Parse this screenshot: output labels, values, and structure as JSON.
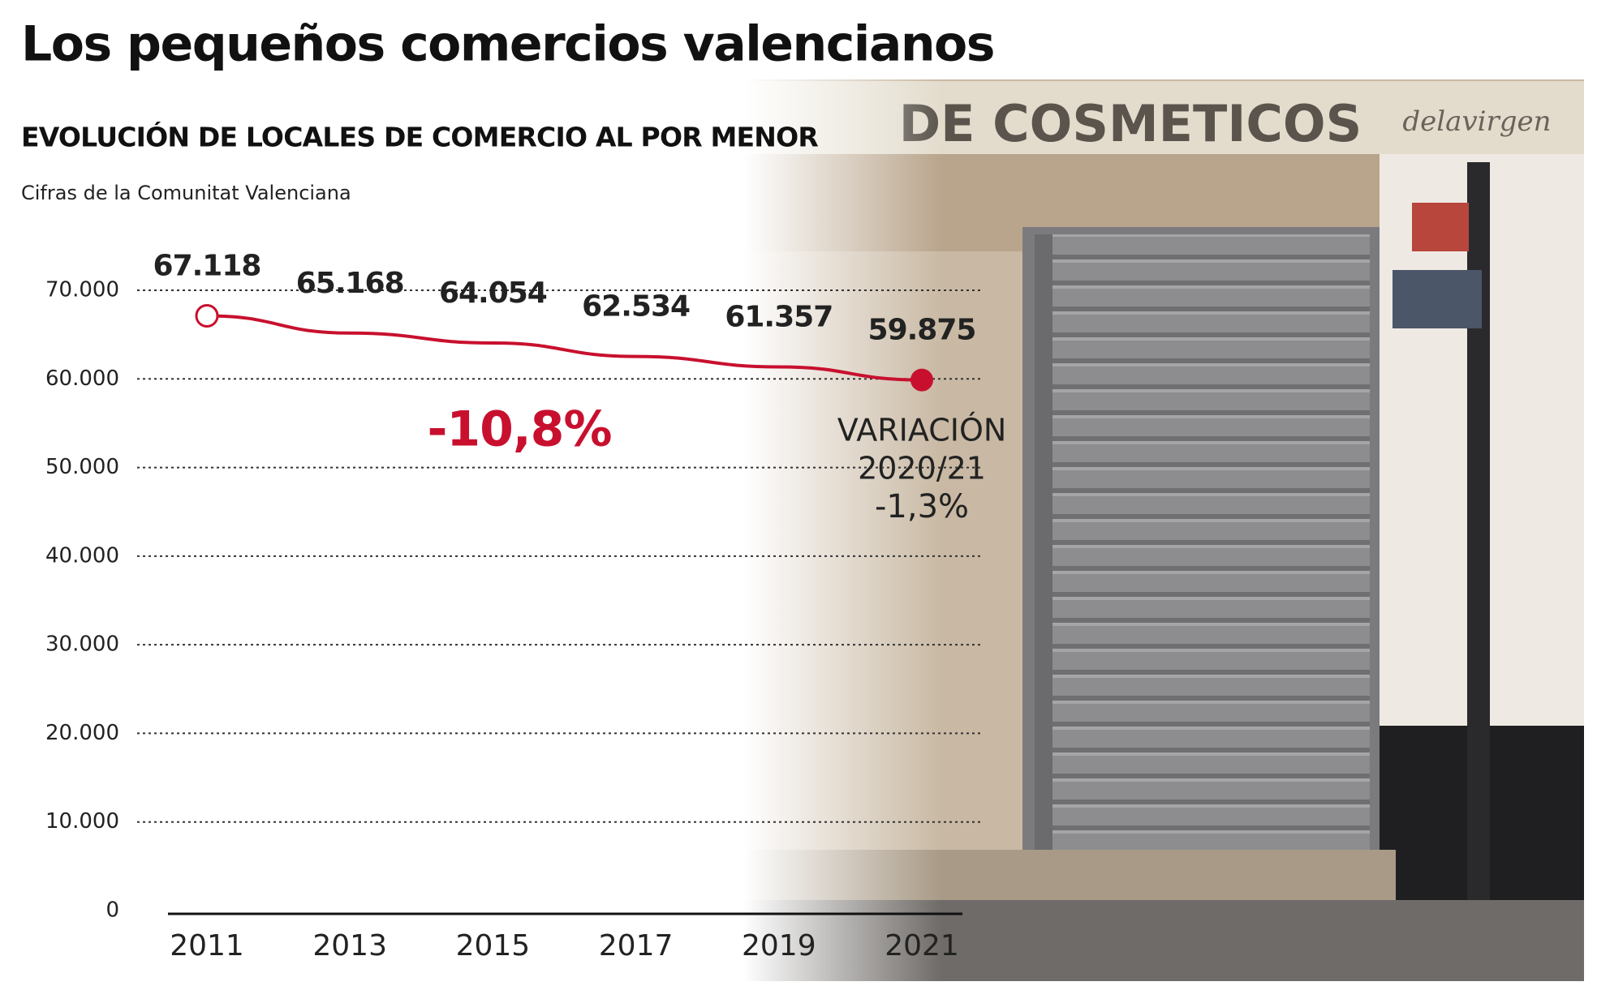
{
  "chart_data": {
    "type": "line",
    "title": "Los pequeños comercios valencianos",
    "subtitle": "EVOLUCIÓN DE LOCALES DE COMERCIO AL POR MENOR",
    "source": "Cifras de la Comunitat Valenciana",
    "categories": [
      "2011",
      "2013",
      "2015",
      "2017",
      "2019",
      "2021"
    ],
    "values": [
      67118,
      65168,
      64054,
      62534,
      61357,
      59875
    ],
    "value_labels": [
      "67.118",
      "65.168",
      "64.054",
      "62.534",
      "61.357",
      "59.875"
    ],
    "color": "#c8102e",
    "ylim": [
      0,
      70000
    ],
    "yticks": [
      {
        "value": 0,
        "label": "0"
      },
      {
        "value": 10000,
        "label": "10.000"
      },
      {
        "value": 20000,
        "label": "20.000"
      },
      {
        "value": 30000,
        "label": "30.000"
      },
      {
        "value": 40000,
        "label": "40.000"
      },
      {
        "value": 50000,
        "label": "50.000"
      },
      {
        "value": 60000,
        "label": "60.000"
      },
      {
        "value": 70000,
        "label": "70.000"
      }
    ],
    "grid": true,
    "annotations": {
      "total_change": "-10,8%",
      "variation_title": "VARIACIÓN",
      "variation_period": "2020/21",
      "variation_value": "-1,3%"
    }
  },
  "photo": {
    "sign": "DE COSMETICOS",
    "script": "delavirgen"
  }
}
